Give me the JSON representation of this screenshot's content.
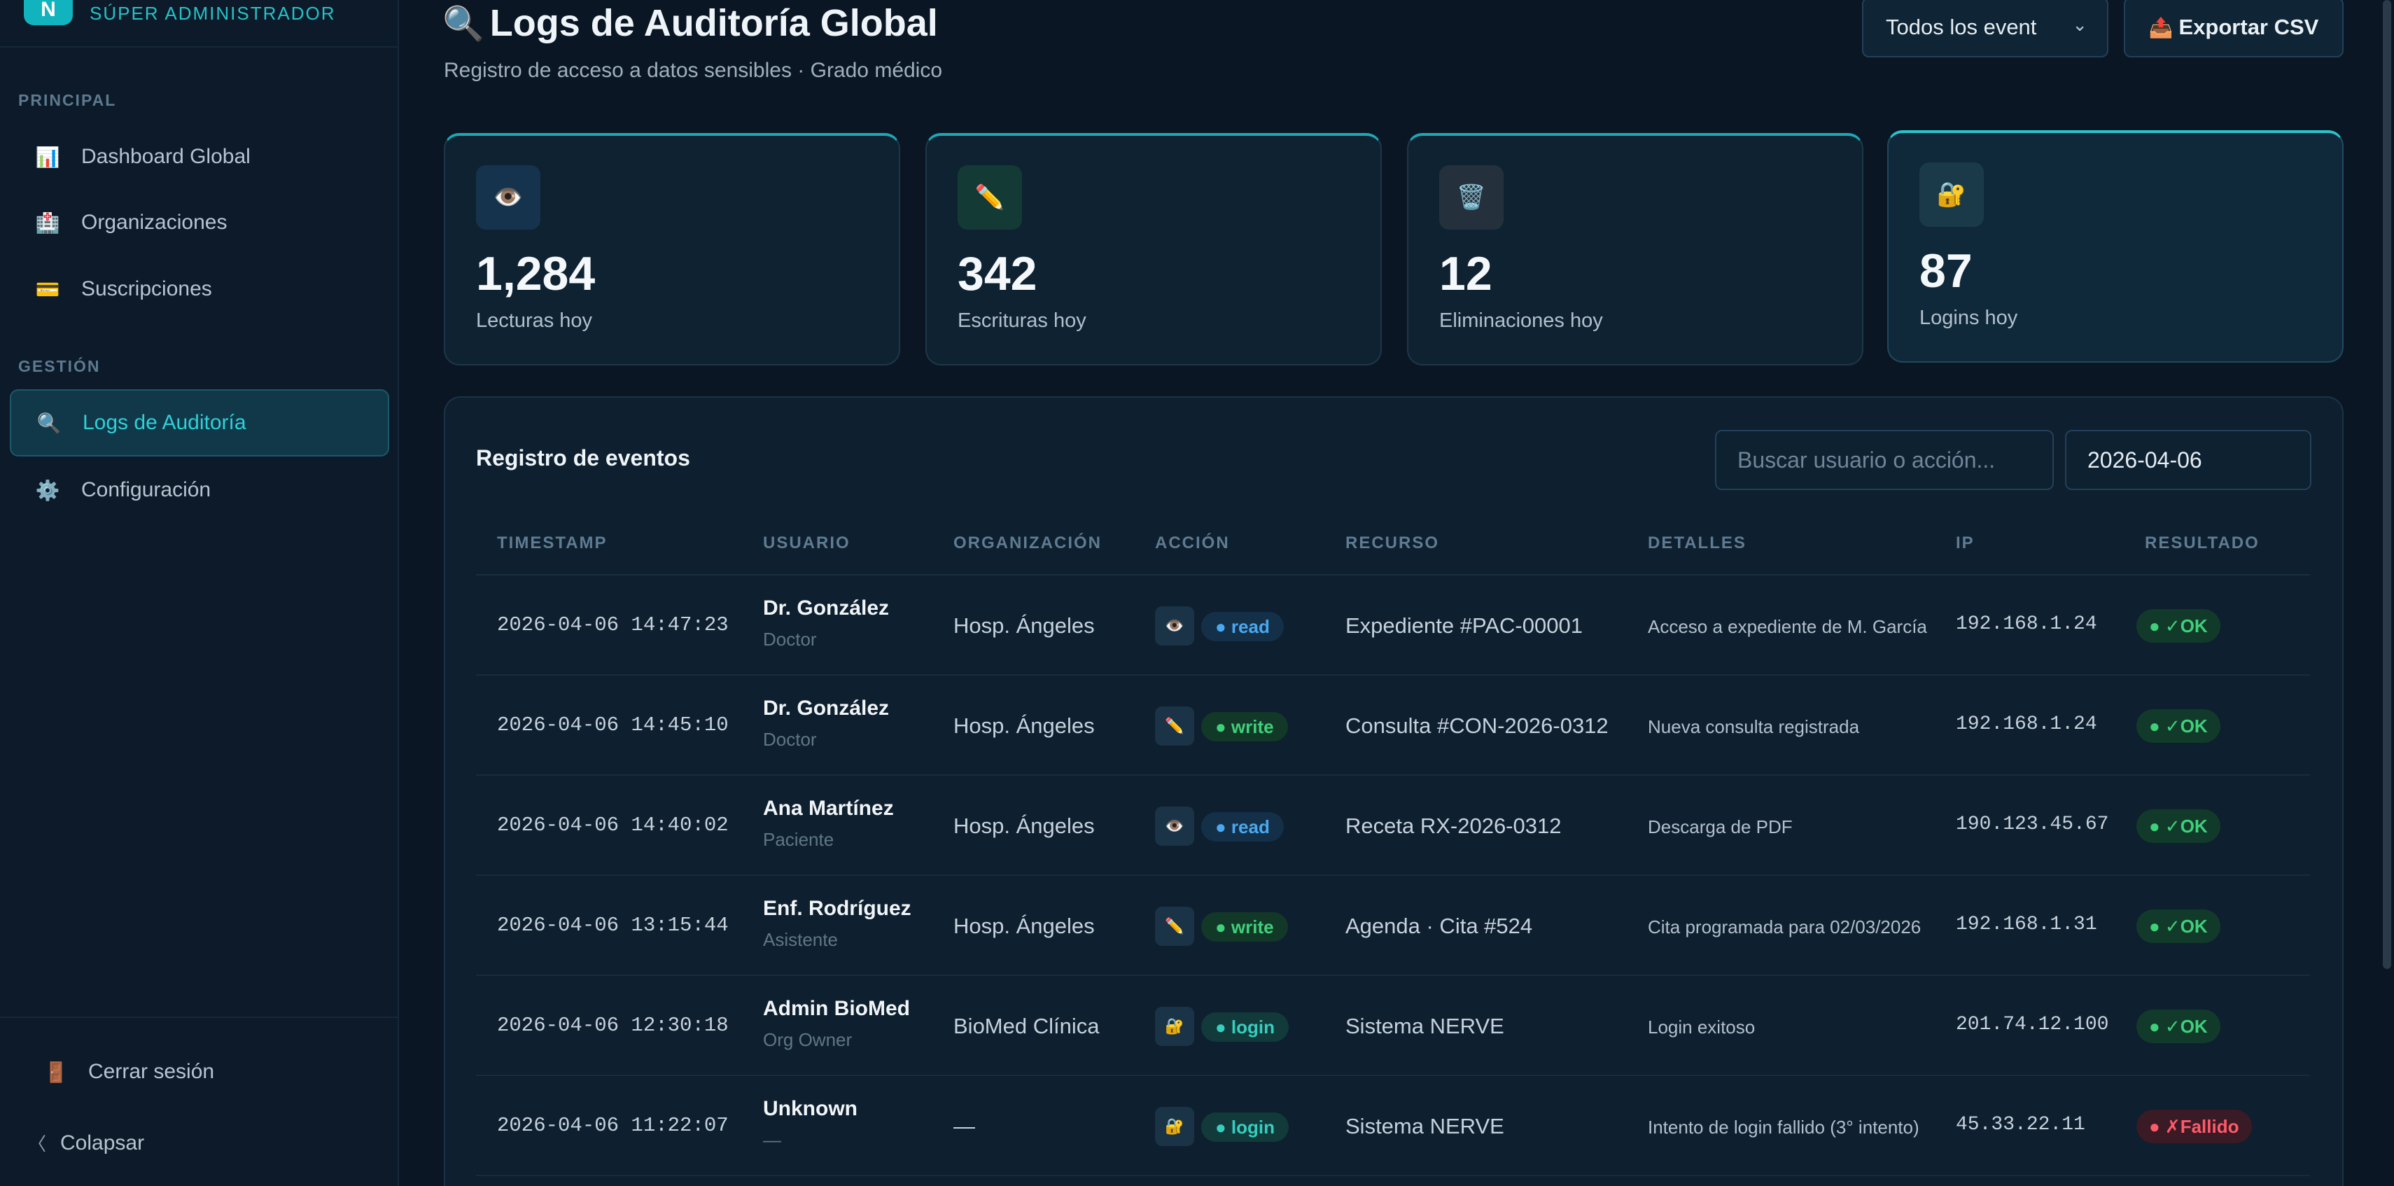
{
  "sidebar": {
    "logo_letter": "N",
    "role": "SÚPER ADMINISTRADOR",
    "sections": [
      {
        "label": "PRINCIPAL",
        "items": [
          {
            "icon": "📊",
            "label": "Dashboard Global"
          },
          {
            "icon": "🏥",
            "label": "Organizaciones"
          },
          {
            "icon": "💳",
            "label": "Suscripciones"
          }
        ]
      },
      {
        "label": "GESTIÓN",
        "items": [
          {
            "icon": "🔍",
            "label": "Logs de Auditoría",
            "active": true
          },
          {
            "icon": "⚙️",
            "label": "Configuración"
          }
        ]
      }
    ],
    "logout": {
      "icon": "🚪",
      "label": "Cerrar sesión"
    },
    "collapse": {
      "icon": "〈",
      "label": "Colapsar"
    }
  },
  "header": {
    "title_icon": "🔍",
    "title": "Logs de Auditoría Global",
    "subtitle": "Registro de acceso a datos sensibles · Grado médico",
    "filter_value": "Todos los event",
    "filter_chevron": "⌄",
    "export_icon": "📤",
    "export_label": "Exportar CSV"
  },
  "stats": [
    {
      "icon": "👁️",
      "value": "1,284",
      "label": "Lecturas hoy",
      "icon_bg": "#16334d"
    },
    {
      "icon": "✏️",
      "value": "342",
      "label": "Escrituras hoy",
      "icon_bg": "#133a34"
    },
    {
      "icon": "🗑️",
      "value": "12",
      "label": "Eliminaciones hoy",
      "icon_bg": "#24313d"
    },
    {
      "icon": "🔐",
      "value": "87",
      "label": "Logins hoy",
      "icon_bg": "#1a3a4a"
    }
  ],
  "events": {
    "title": "Registro de eventos",
    "search_placeholder": "Buscar usuario o acción...",
    "date_value": "2026-04-06",
    "columns": [
      "TIMESTAMP",
      "USUARIO",
      "ORGANIZACIÓN",
      "ACCIÓN",
      "RECURSO",
      "DETALLES",
      "IP",
      "RESULTADO"
    ],
    "rows": [
      {
        "timestamp": "2026-04-06 14:47:23",
        "user": "Dr. González",
        "role": "Doctor",
        "org": "Hosp. Ángeles",
        "action_icon": "👁️",
        "action": "● read",
        "action_type": "read",
        "resource": "Expediente #PAC-00001",
        "details": "Acceso a expediente de M. García",
        "ip": "192.168.1.24",
        "result": "● ✓OK",
        "result_type": "ok"
      },
      {
        "timestamp": "2026-04-06 14:45:10",
        "user": "Dr. González",
        "role": "Doctor",
        "org": "Hosp. Ángeles",
        "action_icon": "✏️",
        "action": "● write",
        "action_type": "write",
        "resource": "Consulta #CON-2026-0312",
        "details": "Nueva consulta registrada",
        "ip": "192.168.1.24",
        "result": "● ✓OK",
        "result_type": "ok"
      },
      {
        "timestamp": "2026-04-06 14:40:02",
        "user": "Ana Martínez",
        "role": "Paciente",
        "org": "Hosp. Ángeles",
        "action_icon": "👁️",
        "action": "● read",
        "action_type": "read",
        "resource": "Receta RX-2026-0312",
        "details": "Descarga de PDF",
        "ip": "190.123.45.67",
        "result": "● ✓OK",
        "result_type": "ok"
      },
      {
        "timestamp": "2026-04-06 13:15:44",
        "user": "Enf. Rodríguez",
        "role": "Asistente",
        "org": "Hosp. Ángeles",
        "action_icon": "✏️",
        "action": "● write",
        "action_type": "write",
        "resource": "Agenda · Cita #524",
        "details": "Cita programada para 02/03/2026",
        "ip": "192.168.1.31",
        "result": "● ✓OK",
        "result_type": "ok"
      },
      {
        "timestamp": "2026-04-06 12:30:18",
        "user": "Admin BioMed",
        "role": "Org Owner",
        "org": "BioMed Clínica",
        "action_icon": "🔐",
        "action": "● login",
        "action_type": "login",
        "resource": "Sistema NERVE",
        "details": "Login exitoso",
        "ip": "201.74.12.100",
        "result": "● ✓OK",
        "result_type": "ok"
      },
      {
        "timestamp": "2026-04-06 11:22:07",
        "user": "Unknown",
        "role": "—",
        "org": "—",
        "action_icon": "🔐",
        "action": "● login",
        "action_type": "login",
        "resource": "Sistema NERVE",
        "details": "Intento de login fallido (3° intento)",
        "ip": "45.33.22.11",
        "result": "● ✗Fallido",
        "result_type": "fail"
      }
    ]
  }
}
